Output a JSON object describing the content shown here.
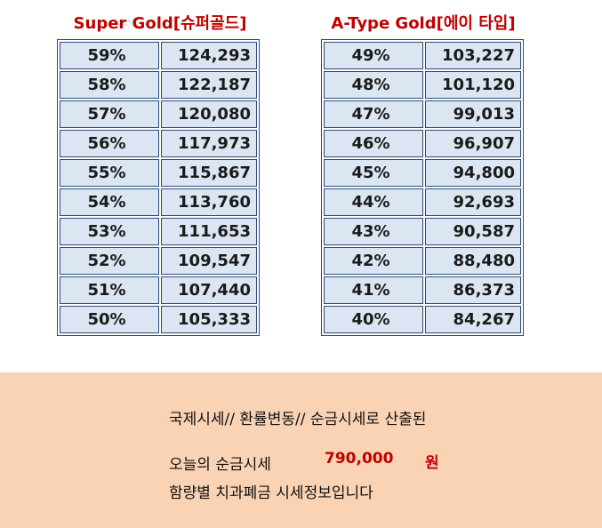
{
  "left": {
    "title": "Super Gold[슈퍼골드]",
    "rows": [
      {
        "pct": "59%",
        "amount": "124,293"
      },
      {
        "pct": "58%",
        "amount": "122,187"
      },
      {
        "pct": "57%",
        "amount": "120,080"
      },
      {
        "pct": "56%",
        "amount": "117,973"
      },
      {
        "pct": "55%",
        "amount": "115,867"
      },
      {
        "pct": "54%",
        "amount": "113,760"
      },
      {
        "pct": "53%",
        "amount": "111,653"
      },
      {
        "pct": "52%",
        "amount": "109,547"
      },
      {
        "pct": "51%",
        "amount": "107,440"
      },
      {
        "pct": "50%",
        "amount": "105,333"
      }
    ]
  },
  "right": {
    "title": "A-Type Gold[에이 타입]",
    "rows": [
      {
        "pct": "49%",
        "amount": "103,227"
      },
      {
        "pct": "48%",
        "amount": "101,120"
      },
      {
        "pct": "47%",
        "amount": "99,013"
      },
      {
        "pct": "46%",
        "amount": "96,907"
      },
      {
        "pct": "45%",
        "amount": "94,800"
      },
      {
        "pct": "44%",
        "amount": "92,693"
      },
      {
        "pct": "43%",
        "amount": "90,587"
      },
      {
        "pct": "42%",
        "amount": "88,480"
      },
      {
        "pct": "41%",
        "amount": "86,373"
      },
      {
        "pct": "40%",
        "amount": "84,267"
      }
    ]
  },
  "footer": {
    "line1": "국제시세// 환률변동// 순금시세로 산출된",
    "today_label": "오늘의 순금시세",
    "today_price": "790,000",
    "unit": "원",
    "line3": "함량별 치과폐금 시세정보입니다"
  },
  "colors": {
    "title": "#c00000",
    "cell_bg": "#dce6f2",
    "border": "#2e4a7a",
    "footer_bg": "#fad3b5"
  }
}
